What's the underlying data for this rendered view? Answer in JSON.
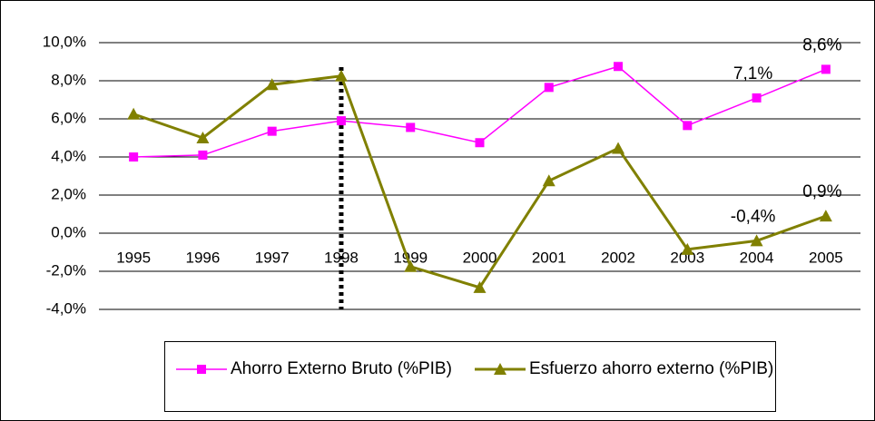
{
  "chart_data": {
    "type": "line",
    "categories": [
      "1995",
      "1996",
      "1997",
      "1998",
      "1999",
      "2000",
      "2001",
      "2002",
      "2003",
      "2004",
      "2005"
    ],
    "series": [
      {
        "name": "Ahorro Externo Bruto (%PIB)",
        "color": "#ff00ff",
        "marker": "square",
        "values": [
          4.0,
          4.1,
          5.35,
          5.9,
          5.55,
          4.75,
          7.65,
          8.75,
          5.65,
          7.1,
          8.6
        ],
        "value_labels": [
          null,
          null,
          null,
          null,
          null,
          null,
          null,
          null,
          null,
          "7,1%",
          "8,6%"
        ]
      },
      {
        "name": "Esfuerzo ahorro externo (%PIB)",
        "color": "#808000",
        "marker": "triangle",
        "values": [
          6.25,
          5.0,
          7.8,
          8.25,
          -1.75,
          -2.85,
          2.75,
          4.45,
          -0.85,
          -0.4,
          0.9
        ],
        "value_labels": [
          null,
          null,
          null,
          null,
          null,
          null,
          null,
          null,
          null,
          "-0,4%",
          "0,9%"
        ]
      }
    ],
    "ylim": [
      -4,
      10
    ],
    "yticks": [
      {
        "value": -4,
        "label": "-4,0%"
      },
      {
        "value": -2,
        "label": "-2,0%"
      },
      {
        "value": 0,
        "label": "0,0%"
      },
      {
        "value": 2,
        "label": "2,0%"
      },
      {
        "value": 4,
        "label": "4,0%"
      },
      {
        "value": 6,
        "label": "6,0%"
      },
      {
        "value": 8,
        "label": "8,0%"
      },
      {
        "value": 10,
        "label": "10,0%"
      }
    ],
    "grid": true,
    "legend": "bottom"
  }
}
